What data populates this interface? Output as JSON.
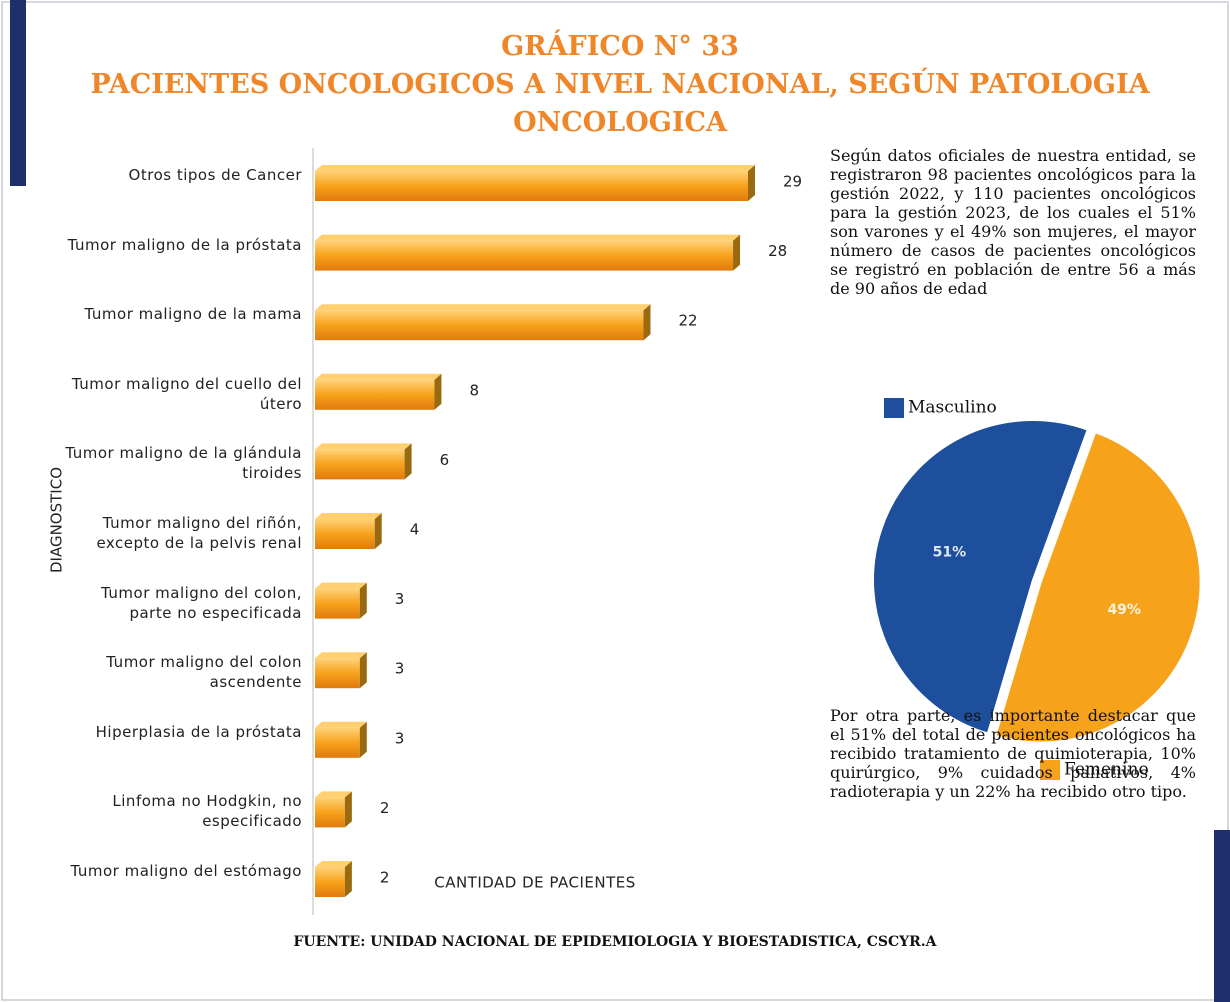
{
  "title": [
    "GRÁFICO N° 33",
    "PACIENTES ONCOLOGICOS A NIVEL NACIONAL, SEGÚN PATOLOGIA ONCOLOGICA"
  ],
  "paragraphs": [
    "Según datos oficiales de nuestra entidad, se registraron 98 pacientes oncológicos para la gestión 2022, y 110 pacientes oncológicos para la gestión 2023, de los cuales el 51% son varones y el 49% son mujeres, el mayor número de casos de pacientes oncológicos se registró en población de entre 56 a más de 90 años de edad",
    "Por otra parte, es importante destacar que el 51% del total de pacientes oncológicos ha recibido tratamiento de quimioterapia, 10% quirúrgico, 9% cuidados paliativos, 4% radioterapia y un 22% ha recibido otro tipo."
  ],
  "source": "FUENTE: UNIDAD NACIONAL DE EPIDEMIOLOGIA Y BIOESTADISTICA, CSCYR.A",
  "chart_data": [
    {
      "type": "bar",
      "orientation": "horizontal",
      "xlabel": "CANTIDAD DE PACIENTES",
      "ylabel": "DIAGNOSTICO",
      "color": "#f5a623",
      "categories": [
        "Otros tipos de Cancer",
        "Tumor maligno de la próstata",
        "Tumor maligno de la mama",
        "Tumor maligno del cuello del útero",
        "Tumor maligno de la glándula tiroides",
        "Tumor maligno del riñón, excepto de la pelvis renal",
        "Tumor maligno del colon, parte no especificada",
        "Tumor maligno del colon ascendente",
        "Hiperplasia de la próstata",
        "Linfoma no Hodgkin, no especificado",
        "Tumor maligno del estómago"
      ],
      "values": [
        29,
        28,
        22,
        8,
        6,
        4,
        3,
        3,
        3,
        2,
        2
      ]
    },
    {
      "type": "pie",
      "categories": [
        "Masculino",
        "Femenino"
      ],
      "values": [
        51,
        49
      ],
      "value_labels": [
        "51%",
        "49%"
      ],
      "colors": [
        "#1d4f9c",
        "#f7a21b"
      ]
    }
  ]
}
